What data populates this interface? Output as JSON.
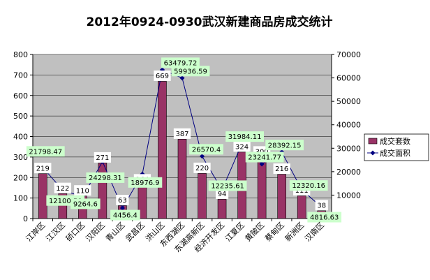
{
  "chart_data": {
    "type": "bar",
    "title": "2012年0924-0930武汉新建商品房成交统计",
    "categories": [
      "江岸区",
      "江汉区",
      "硚口区",
      "汉阳区",
      "青山区",
      "武昌区",
      "洪山区",
      "东西湖区",
      "东湖高新区",
      "经济开发区",
      "江夏区",
      "黄陂区",
      "蔡甸区",
      "新洲区",
      "汉南区"
    ],
    "ylim_left": [
      0,
      800
    ],
    "ylim_right": [
      0,
      70000
    ],
    "left_ticks": [
      "0",
      "100",
      "200",
      "300",
      "400",
      "500",
      "600",
      "700",
      "800"
    ],
    "right_ticks": [
      "0",
      "10000",
      "20000",
      "30000",
      "40000",
      "50000",
      "60000",
      "70000"
    ],
    "grid": true,
    "legend_position": "right",
    "colors": {
      "plot_bg": "#c0c0c0",
      "bar": "#993366",
      "line": "#000080",
      "bar_label_bg": "#ffffff",
      "area_label_bg": "#ccffcc"
    },
    "series": [
      {
        "name": "成交套数",
        "type": "bar",
        "axis": "left",
        "values": [
          219,
          122,
          110,
          271,
          63,
          164,
          669,
          387,
          220,
          94,
          324,
          300,
          216,
          111,
          38
        ],
        "labels": [
          "219",
          "122",
          "110",
          "271",
          "63",
          "164",
          "669",
          "387",
          "220",
          "94",
          "324",
          "300",
          "216",
          "111",
          "38"
        ]
      },
      {
        "name": "成交面积",
        "type": "line",
        "axis": "right",
        "values": [
          21798.47,
          12100.58,
          9264.6,
          24298.31,
          4456.4,
          18976.9,
          63479.72,
          59936.59,
          26570.4,
          12235.61,
          31984.11,
          23241.77,
          28392.15,
          12320.16,
          4816.63
        ],
        "labels": [
          "21798.47",
          "12100.58",
          "9264.6",
          "24298.31",
          "4456.4",
          "18976.9",
          "63479.72",
          "59936.59",
          "26570.4",
          "12235.61",
          "31984.11",
          "23241.77",
          "28392.15",
          "12320.16",
          "4816.63"
        ]
      }
    ]
  }
}
